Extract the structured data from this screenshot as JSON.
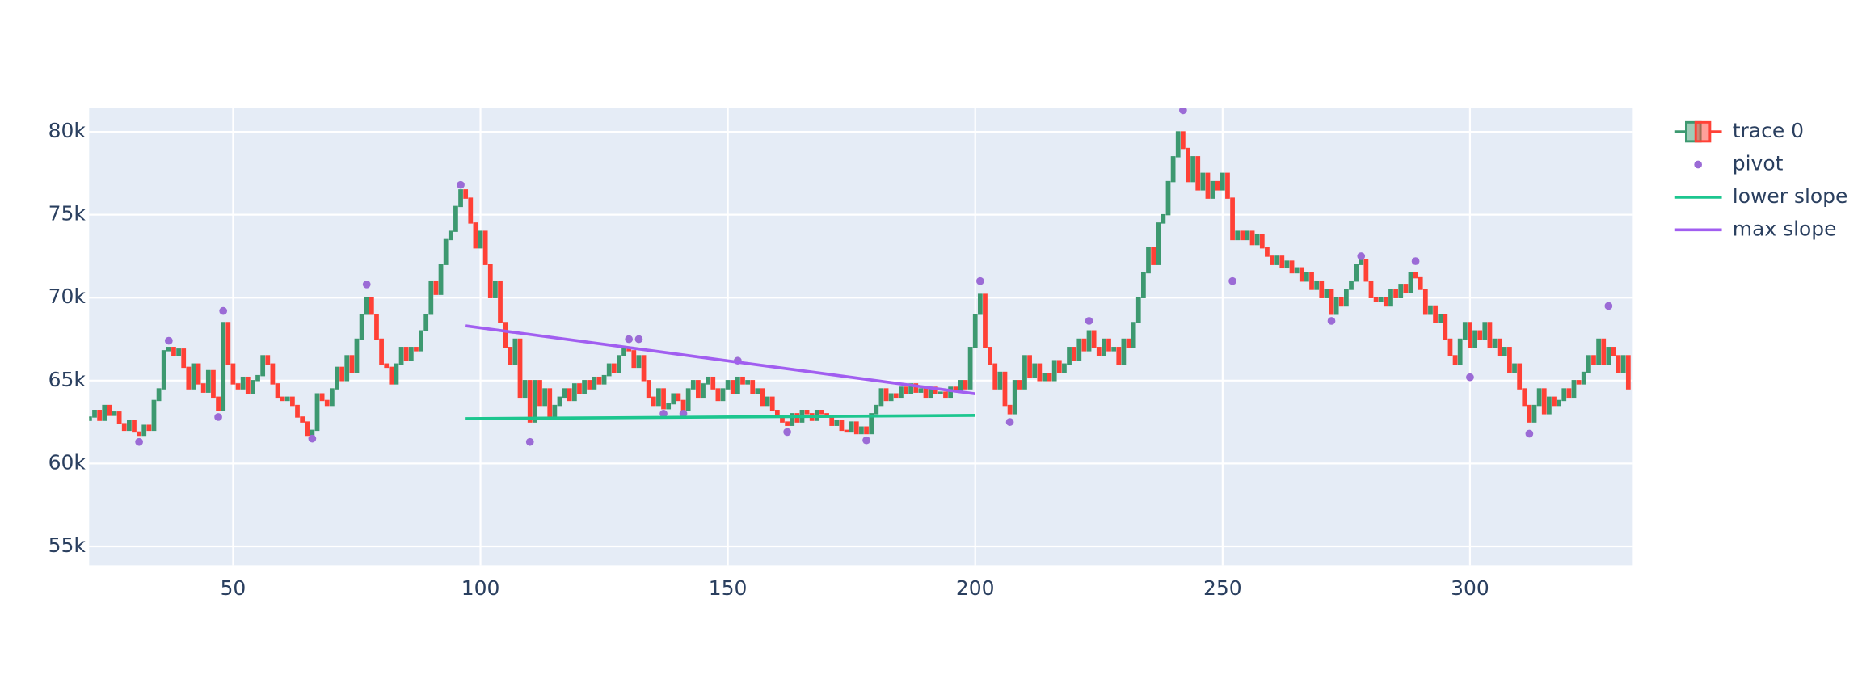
{
  "chart_data": {
    "type": "candlestick",
    "xlim": [
      20.9,
      332.9
    ],
    "xticks": [
      50,
      100,
      150,
      200,
      250,
      300
    ],
    "ylim": [
      53860,
      81430
    ],
    "yticks": [
      {
        "value": 55000,
        "label": "55k"
      },
      {
        "value": 60000,
        "label": "60k"
      },
      {
        "value": 65000,
        "label": "65k"
      },
      {
        "value": 70000,
        "label": "70k"
      },
      {
        "value": 75000,
        "label": "75k"
      },
      {
        "value": 80000,
        "label": "80k"
      }
    ],
    "grid": true,
    "legend": "right",
    "series": [
      {
        "name": "trace 0",
        "type": "candlestick",
        "increasing_color": "#3D9970",
        "decreasing_color": "#FF4136",
        "x": [
          21,
          22,
          23,
          24,
          25,
          26,
          27,
          28,
          29,
          30,
          31,
          32,
          33,
          34,
          35,
          36,
          37,
          38,
          39,
          40,
          41,
          42,
          43,
          44,
          45,
          46,
          47,
          48,
          49,
          50,
          51,
          52,
          53,
          54,
          55,
          56,
          57,
          58,
          59,
          60,
          61,
          62,
          63,
          64,
          65,
          66,
          67,
          68,
          69,
          70,
          71,
          72,
          73,
          74,
          75,
          76,
          77,
          78,
          79,
          80,
          81,
          82,
          83,
          84,
          85,
          86,
          87,
          88,
          89,
          90,
          91,
          92,
          93,
          94,
          95,
          96,
          97,
          98,
          99,
          100,
          101,
          102,
          103,
          104,
          105,
          106,
          107,
          108,
          109,
          110,
          111,
          112,
          113,
          114,
          115,
          116,
          117,
          118,
          119,
          120,
          121,
          122,
          123,
          124,
          125,
          126,
          127,
          128,
          129,
          130,
          131,
          132,
          133,
          134,
          135,
          136,
          137,
          138,
          139,
          140,
          141,
          142,
          143,
          144,
          145,
          146,
          147,
          148,
          149,
          150,
          151,
          152,
          153,
          154,
          155,
          156,
          157,
          158,
          159,
          160,
          161,
          162,
          163,
          164,
          165,
          166,
          167,
          168,
          169,
          170,
          171,
          172,
          173,
          174,
          175,
          176,
          177,
          178,
          179,
          180,
          181,
          182,
          183,
          184,
          185,
          186,
          187,
          188,
          189,
          190,
          191,
          192,
          193,
          194,
          195,
          196,
          197,
          198,
          199,
          200,
          201,
          202,
          203,
          204,
          205,
          206,
          207,
          208,
          209,
          210,
          211,
          212,
          213,
          214,
          215,
          216,
          217,
          218,
          219,
          220,
          221,
          222,
          223,
          224,
          225,
          226,
          227,
          228,
          229,
          230,
          231,
          232,
          233,
          234,
          235,
          236,
          237,
          238,
          239,
          240,
          241,
          242,
          243,
          244,
          245,
          246,
          247,
          248,
          249,
          250,
          251,
          252,
          253,
          254,
          255,
          256,
          257,
          258,
          259,
          260,
          261,
          262,
          263,
          264,
          265,
          266,
          267,
          268,
          269,
          270,
          271,
          272,
          273,
          274,
          275,
          276,
          277,
          278,
          279,
          280,
          281,
          282,
          283,
          284,
          285,
          286,
          287,
          288,
          289,
          290,
          291,
          292,
          293,
          294,
          295,
          296,
          297,
          298,
          299,
          300,
          301,
          302,
          303,
          304,
          305,
          306,
          307,
          308,
          309,
          310,
          311,
          312,
          313,
          314,
          315,
          316,
          317,
          318,
          319,
          320,
          321,
          322,
          323,
          324,
          325,
          326,
          327,
          328,
          329,
          330,
          331,
          332
        ],
        "open": [
          62600,
          62800,
          63200,
          62600,
          63500,
          62900,
          63100,
          62400,
          62000,
          62600,
          61900,
          61700,
          62300,
          62000,
          63800,
          64500,
          66800,
          67000,
          66500,
          66900,
          65800,
          64500,
          66000,
          64800,
          64300,
          65600,
          64000,
          63200,
          68500,
          66000,
          64800,
          64500,
          65200,
          64200,
          65000,
          65300,
          66500,
          66000,
          64800,
          64000,
          63800,
          64000,
          63500,
          62800,
          62500,
          61700,
          62000,
          64200,
          63800,
          63500,
          64500,
          65800,
          65000,
          66500,
          65500,
          67500,
          69000,
          70000,
          69000,
          67500,
          66000,
          65800,
          64800,
          66000,
          67000,
          66200,
          67000,
          66800,
          68000,
          69000,
          71000,
          70200,
          72000,
          73500,
          74000,
          75500,
          76500,
          76000,
          74500,
          73000,
          74000,
          72000,
          70000,
          71000,
          68500,
          67000,
          66000,
          67500,
          64000,
          65000,
          62500,
          65000,
          63500,
          64500,
          62800,
          63500,
          64000,
          64500,
          63800,
          64800,
          64200,
          65000,
          64500,
          65200,
          64800,
          65300,
          66000,
          65500,
          66500,
          67000,
          66800,
          65800,
          66500,
          65000,
          64000,
          63500,
          64500,
          63300,
          63600,
          64200,
          63800,
          63200,
          64500,
          65000,
          64000,
          64800,
          65200,
          64500,
          63800,
          64500,
          65000,
          64200,
          65200,
          64800,
          65000,
          64200,
          64500,
          63500,
          64000,
          63200,
          62800,
          62500,
          62300,
          63000,
          62500,
          63200,
          63000,
          62600,
          63200,
          63000,
          62800,
          62300,
          62600,
          62000,
          61900,
          62500,
          61800,
          62200,
          61800,
          63000,
          63500,
          64500,
          63800,
          64200,
          64000,
          64600,
          64200,
          64800,
          64300,
          64500,
          64000,
          64600,
          64200,
          64300,
          64000,
          64600,
          64400,
          65000,
          64500,
          67000,
          69000,
          70200,
          67000,
          66000,
          64500,
          65500,
          63500,
          63000,
          65000,
          64500,
          66500,
          65200,
          66000,
          65000,
          65400,
          65000,
          66200,
          65500,
          66000,
          67000,
          66200,
          67500,
          66800,
          68000,
          67000,
          66500,
          67500,
          66800,
          67000,
          66000,
          67500,
          67000,
          68500,
          70000,
          71500,
          73000,
          72000,
          74500,
          75000,
          77000,
          78500,
          80000,
          79000,
          77000,
          78500,
          76500,
          77500,
          76000,
          77000,
          76500,
          77500,
          76000,
          73500,
          74000,
          73500,
          74000,
          73200,
          73800,
          73000,
          72500,
          72000,
          72500,
          71800,
          72200,
          71500,
          71800,
          71000,
          71500,
          70500,
          71000,
          70000,
          70500,
          69000,
          70000,
          69500,
          70500,
          71000,
          72000,
          72300,
          71000,
          70000,
          69800,
          70000,
          69500,
          70500,
          70000,
          70800,
          70300,
          71500,
          71200,
          70500,
          69000,
          69500,
          68500,
          69000,
          67500,
          66500,
          66000,
          67500,
          68500,
          67000,
          68000,
          67500,
          68500,
          67000,
          67500,
          66500,
          67000,
          65500,
          66000,
          64500,
          63500,
          62500,
          63500,
          64500,
          63000,
          64000,
          63500,
          63800,
          64500,
          64000,
          65000,
          64800,
          65500,
          66500,
          66000,
          67500,
          66000,
          67000,
          66500,
          65500,
          66500
        ],
        "close": [
          62800,
          63200,
          62600,
          63500,
          62900,
          63100,
          62400,
          62000,
          62600,
          61900,
          61700,
          62300,
          62000,
          63800,
          64500,
          66800,
          67000,
          66500,
          66900,
          65800,
          64500,
          66000,
          64800,
          64300,
          65600,
          64000,
          63200,
          68500,
          66000,
          64800,
          64500,
          65200,
          64200,
          65000,
          65300,
          66500,
          66000,
          64800,
          64000,
          63800,
          64000,
          63500,
          62800,
          62500,
          61700,
          62000,
          64200,
          63800,
          63500,
          64500,
          65800,
          65000,
          66500,
          65500,
          67500,
          69000,
          70000,
          69000,
          67500,
          66000,
          65800,
          64800,
          66000,
          67000,
          66200,
          67000,
          66800,
          68000,
          69000,
          71000,
          70200,
          72000,
          73500,
          74000,
          75500,
          76500,
          76000,
          74500,
          73000,
          74000,
          72000,
          70000,
          71000,
          68500,
          67000,
          66000,
          67500,
          64000,
          65000,
          62500,
          65000,
          63500,
          64500,
          62800,
          63500,
          64000,
          64500,
          63800,
          64800,
          64200,
          65000,
          64500,
          65200,
          64800,
          65300,
          66000,
          65500,
          66500,
          67000,
          66800,
          65800,
          66500,
          65000,
          64000,
          63500,
          64500,
          63300,
          63600,
          64200,
          63800,
          63200,
          64500,
          65000,
          64000,
          64800,
          65200,
          64500,
          63800,
          64500,
          65000,
          64200,
          65200,
          64800,
          65000,
          64200,
          64500,
          63500,
          64000,
          63200,
          62800,
          62500,
          62300,
          63000,
          62500,
          63200,
          63000,
          62600,
          63200,
          63000,
          62800,
          62300,
          62600,
          62000,
          61900,
          62500,
          61800,
          62200,
          61800,
          63000,
          63500,
          64500,
          63800,
          64200,
          64000,
          64600,
          64200,
          64800,
          64300,
          64500,
          64000,
          64600,
          64200,
          64300,
          64000,
          64600,
          64400,
          65000,
          64500,
          67000,
          69000,
          70200,
          67000,
          66000,
          64500,
          65500,
          63500,
          63000,
          65000,
          64500,
          66500,
          65200,
          66000,
          65000,
          65400,
          65000,
          66200,
          65500,
          66000,
          67000,
          66200,
          67500,
          66800,
          68000,
          67000,
          66500,
          67500,
          66800,
          67000,
          66000,
          67500,
          67000,
          68500,
          70000,
          71500,
          73000,
          72000,
          74500,
          75000,
          77000,
          78500,
          80000,
          79000,
          77000,
          78500,
          76500,
          77500,
          76000,
          77000,
          76500,
          77500,
          76000,
          73500,
          74000,
          73500,
          74000,
          73200,
          73800,
          73000,
          72500,
          72000,
          72500,
          71800,
          72200,
          71500,
          71800,
          71000,
          71500,
          70500,
          71000,
          70000,
          70500,
          69000,
          70000,
          69500,
          70500,
          71000,
          72000,
          72300,
          71000,
          70000,
          69800,
          70000,
          69500,
          70500,
          70000,
          70800,
          70300,
          71500,
          71200,
          70500,
          69000,
          69500,
          68500,
          69000,
          67500,
          66500,
          66000,
          67500,
          68500,
          67000,
          68000,
          67500,
          68500,
          67000,
          67500,
          66500,
          67000,
          65500,
          66000,
          64500,
          63500,
          62500,
          63500,
          64500,
          63000,
          64000,
          63500,
          63800,
          64500,
          64000,
          65000,
          64800,
          65500,
          66500,
          66000,
          67500,
          66000,
          67000,
          66500,
          65500,
          66500,
          64500
        ]
      },
      {
        "name": "pivot",
        "type": "scatter",
        "color": "#9b6bd6",
        "x": [
          31,
          37,
          47,
          48,
          66,
          77,
          96,
          110,
          130,
          132,
          137,
          141,
          152,
          162,
          178,
          201,
          207,
          223,
          242,
          252,
          272,
          278,
          289,
          300,
          312,
          328
        ],
        "values": [
          61300,
          67400,
          62800,
          69200,
          61500,
          70800,
          76800,
          61300,
          67500,
          67500,
          63000,
          63000,
          66200,
          61900,
          61400,
          71000,
          62500,
          68600,
          81300,
          71000,
          68600,
          72500,
          72200,
          65200,
          61800,
          69500
        ]
      },
      {
        "name": "lower slope",
        "type": "line",
        "color": "#1cc68f",
        "x": [
          97,
          200
        ],
        "values": [
          62700,
          62900
        ]
      },
      {
        "name": "max slope",
        "type": "line",
        "color": "#a15ef0",
        "x": [
          97,
          200
        ],
        "values": [
          68300,
          64200
        ]
      }
    ]
  }
}
